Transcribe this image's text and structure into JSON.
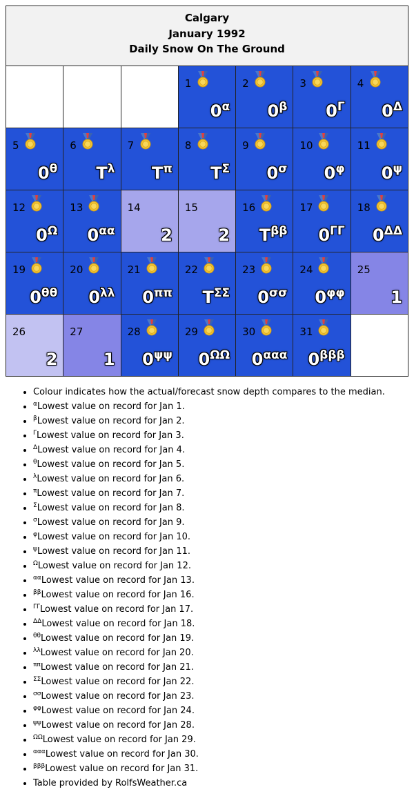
{
  "header": {
    "city": "Calgary",
    "month": "January 1992",
    "subtitle": "Daily Snow On The Ground"
  },
  "colors": {
    "below_median": "#2352d8",
    "above1": "#8585e6",
    "above2": "#a6a6ec",
    "above3": "#c2c2f2",
    "empty": "#ffffff",
    "header_bg": "#f2f2f2"
  },
  "weeks": [
    [
      {
        "empty": true
      },
      {
        "empty": true
      },
      {
        "empty": true
      },
      {
        "day": "1",
        "value": "0",
        "sup": "α",
        "medal": true,
        "shade": "below_median"
      },
      {
        "day": "2",
        "value": "0",
        "sup": "β",
        "medal": true,
        "shade": "below_median"
      },
      {
        "day": "3",
        "value": "0",
        "sup": "Γ",
        "medal": true,
        "shade": "below_median"
      },
      {
        "day": "4",
        "value": "0",
        "sup": "Δ",
        "medal": true,
        "shade": "below_median"
      }
    ],
    [
      {
        "day": "5",
        "value": "0",
        "sup": "θ",
        "medal": true,
        "shade": "below_median"
      },
      {
        "day": "6",
        "value": "T",
        "sup": "λ",
        "medal": true,
        "shade": "below_median"
      },
      {
        "day": "7",
        "value": "T",
        "sup": "π",
        "medal": true,
        "shade": "below_median"
      },
      {
        "day": "8",
        "value": "T",
        "sup": "Σ",
        "medal": true,
        "shade": "below_median"
      },
      {
        "day": "9",
        "value": "0",
        "sup": "σ",
        "medal": true,
        "shade": "below_median"
      },
      {
        "day": "10",
        "value": "0",
        "sup": "φ",
        "medal": true,
        "shade": "below_median"
      },
      {
        "day": "11",
        "value": "0",
        "sup": "ψ",
        "medal": true,
        "shade": "below_median"
      }
    ],
    [
      {
        "day": "12",
        "value": "0",
        "sup": "Ω",
        "medal": true,
        "shade": "below_median"
      },
      {
        "day": "13",
        "value": "0",
        "sup": "αα",
        "medal": true,
        "shade": "below_median"
      },
      {
        "day": "14",
        "value": "2",
        "sup": "",
        "medal": false,
        "shade": "above2"
      },
      {
        "day": "15",
        "value": "2",
        "sup": "",
        "medal": false,
        "shade": "above2"
      },
      {
        "day": "16",
        "value": "T",
        "sup": "ββ",
        "medal": true,
        "shade": "below_median"
      },
      {
        "day": "17",
        "value": "0",
        "sup": "ΓΓ",
        "medal": true,
        "shade": "below_median"
      },
      {
        "day": "18",
        "value": "0",
        "sup": "ΔΔ",
        "medal": true,
        "shade": "below_median"
      }
    ],
    [
      {
        "day": "19",
        "value": "0",
        "sup": "θθ",
        "medal": true,
        "shade": "below_median"
      },
      {
        "day": "20",
        "value": "0",
        "sup": "λλ",
        "medal": true,
        "shade": "below_median"
      },
      {
        "day": "21",
        "value": "0",
        "sup": "ππ",
        "medal": true,
        "shade": "below_median"
      },
      {
        "day": "22",
        "value": "T",
        "sup": "ΣΣ",
        "medal": true,
        "shade": "below_median"
      },
      {
        "day": "23",
        "value": "0",
        "sup": "σσ",
        "medal": true,
        "shade": "below_median"
      },
      {
        "day": "24",
        "value": "0",
        "sup": "φφ",
        "medal": true,
        "shade": "below_median"
      },
      {
        "day": "25",
        "value": "1",
        "sup": "",
        "medal": false,
        "shade": "above1"
      }
    ],
    [
      {
        "day": "26",
        "value": "2",
        "sup": "",
        "medal": false,
        "shade": "above3"
      },
      {
        "day": "27",
        "value": "1",
        "sup": "",
        "medal": false,
        "shade": "above1"
      },
      {
        "day": "28",
        "value": "0",
        "sup": "ψψ",
        "medal": true,
        "shade": "below_median"
      },
      {
        "day": "29",
        "value": "0",
        "sup": "ΩΩ",
        "medal": true,
        "shade": "below_median"
      },
      {
        "day": "30",
        "value": "0",
        "sup": "ααα",
        "medal": true,
        "shade": "below_median"
      },
      {
        "day": "31",
        "value": "0",
        "sup": "βββ",
        "medal": true,
        "shade": "below_median"
      },
      {
        "empty": true
      }
    ]
  ],
  "notes": [
    {
      "sup": "",
      "text": "Colour indicates how the actual/forecast snow depth compares to the median."
    },
    {
      "sup": "α",
      "text": "Lowest value on record for Jan 1."
    },
    {
      "sup": "β",
      "text": "Lowest value on record for Jan 2."
    },
    {
      "sup": "Γ",
      "text": "Lowest value on record for Jan 3."
    },
    {
      "sup": "Δ",
      "text": "Lowest value on record for Jan 4."
    },
    {
      "sup": "θ",
      "text": "Lowest value on record for Jan 5."
    },
    {
      "sup": "λ",
      "text": "Lowest value on record for Jan 6."
    },
    {
      "sup": "π",
      "text": "Lowest value on record for Jan 7."
    },
    {
      "sup": "Σ",
      "text": "Lowest value on record for Jan 8."
    },
    {
      "sup": "σ",
      "text": "Lowest value on record for Jan 9."
    },
    {
      "sup": "φ",
      "text": "Lowest value on record for Jan 10."
    },
    {
      "sup": "ψ",
      "text": "Lowest value on record for Jan 11."
    },
    {
      "sup": "Ω",
      "text": "Lowest value on record for Jan 12."
    },
    {
      "sup": "αα",
      "text": "Lowest value on record for Jan 13."
    },
    {
      "sup": "ββ",
      "text": "Lowest value on record for Jan 16."
    },
    {
      "sup": "ΓΓ",
      "text": "Lowest value on record for Jan 17."
    },
    {
      "sup": "ΔΔ",
      "text": "Lowest value on record for Jan 18."
    },
    {
      "sup": "θθ",
      "text": "Lowest value on record for Jan 19."
    },
    {
      "sup": "λλ",
      "text": "Lowest value on record for Jan 20."
    },
    {
      "sup": "ππ",
      "text": "Lowest value on record for Jan 21."
    },
    {
      "sup": "ΣΣ",
      "text": "Lowest value on record for Jan 22."
    },
    {
      "sup": "σσ",
      "text": "Lowest value on record for Jan 23."
    },
    {
      "sup": "φφ",
      "text": "Lowest value on record for Jan 24."
    },
    {
      "sup": "ψψ",
      "text": "Lowest value on record for Jan 28."
    },
    {
      "sup": "ΩΩ",
      "text": "Lowest value on record for Jan 29."
    },
    {
      "sup": "ααα",
      "text": "Lowest value on record for Jan 30."
    },
    {
      "sup": "βββ",
      "text": "Lowest value on record for Jan 31."
    },
    {
      "sup": "",
      "text": "Table provided by RolfsWeather.ca"
    }
  ],
  "icons": {
    "record": "medal-icon"
  }
}
